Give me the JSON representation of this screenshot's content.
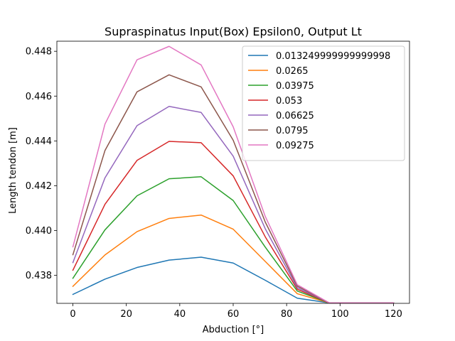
{
  "chart_data": {
    "type": "line",
    "title": "Supraspinatus Input(Box) Epsilon0, Output Lt",
    "xlabel": "Abduction [°]",
    "ylabel": "Length tendon [m]",
    "xlim": [
      -6,
      126
    ],
    "ylim": [
      0.43675,
      0.44845
    ],
    "xticks": [
      0,
      20,
      40,
      60,
      80,
      100,
      120
    ],
    "xtick_labels": [
      "0",
      "20",
      "40",
      "60",
      "80",
      "100",
      "120"
    ],
    "yticks": [
      0.438,
      0.44,
      0.442,
      0.444,
      0.446,
      0.448
    ],
    "ytick_labels": [
      "0.438",
      "0.440",
      "0.442",
      "0.444",
      "0.446",
      "0.448"
    ],
    "grid": false,
    "legend_position": "top-right",
    "x": [
      0,
      12,
      24,
      36,
      48,
      60,
      72,
      84,
      96,
      108,
      120
    ],
    "series": [
      {
        "name": "0.013249999999999998",
        "color": "#1f77b4",
        "values": [
          0.43715,
          0.43783,
          0.43835,
          0.43868,
          0.43881,
          0.43855,
          0.43778,
          0.43698,
          0.43677,
          0.43677,
          0.43677
        ]
      },
      {
        "name": "0.0265",
        "color": "#ff7f0e",
        "values": [
          0.43751,
          0.43891,
          0.43995,
          0.44054,
          0.44069,
          0.44006,
          0.43862,
          0.43718,
          0.43677,
          0.43677,
          0.43677
        ]
      },
      {
        "name": "0.03975",
        "color": "#2ca02c",
        "values": [
          0.43787,
          0.44003,
          0.44155,
          0.44231,
          0.4424,
          0.44134,
          0.43926,
          0.4373,
          0.43677,
          0.43677,
          0.43677
        ]
      },
      {
        "name": "0.053",
        "color": "#d62728",
        "values": [
          0.43823,
          0.44117,
          0.44313,
          0.44398,
          0.44392,
          0.44244,
          0.43972,
          0.43738,
          0.43677,
          0.43677,
          0.43677
        ]
      },
      {
        "name": "0.06625",
        "color": "#9467bd",
        "values": [
          0.43857,
          0.44235,
          0.44468,
          0.44554,
          0.44527,
          0.44332,
          0.44008,
          0.43745,
          0.43677,
          0.43677,
          0.43677
        ]
      },
      {
        "name": "0.0795",
        "color": "#8c564b",
        "values": [
          0.43892,
          0.44357,
          0.44619,
          0.44695,
          0.44641,
          0.44403,
          0.44038,
          0.43752,
          0.43677,
          0.43677,
          0.43677
        ]
      },
      {
        "name": "0.09275",
        "color": "#e377c2",
        "values": [
          0.43927,
          0.44475,
          0.44762,
          0.44822,
          0.44739,
          0.44463,
          0.44063,
          0.43758,
          0.43677,
          0.43677,
          0.43677
        ]
      }
    ]
  }
}
